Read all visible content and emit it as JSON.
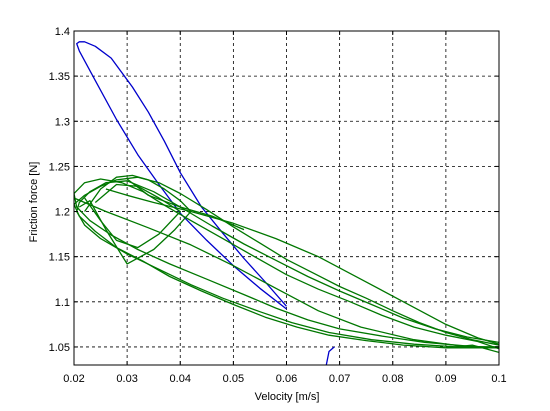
{
  "chart_data": {
    "type": "line",
    "title": "",
    "xlabel": "Velocity [m/s]",
    "ylabel": "Friction force [N]",
    "xlim": [
      0.02,
      0.1
    ],
    "ylim": [
      1.03,
      1.4
    ],
    "xticks": [
      0.02,
      0.03,
      0.04,
      0.05,
      0.06,
      0.07,
      0.08,
      0.09,
      0.1
    ],
    "xtick_labels": [
      "0.02",
      "0.03",
      "0.04",
      "0.05",
      "0.06",
      "0.07",
      "0.08",
      "0.09",
      "0.1"
    ],
    "yticks": [
      1.05,
      1.1,
      1.15,
      1.2,
      1.25,
      1.3,
      1.35,
      1.4
    ],
    "ytick_labels": [
      "1.05",
      "1.1",
      "1.15",
      "1.2",
      "1.25",
      "1.3",
      "1.35",
      "1.4"
    ],
    "grid": true,
    "legend": "none",
    "series": [
      {
        "color": "#0000cc",
        "segments": [
          [
            [
              0.06,
              1.092
            ],
            [
              0.055,
              1.115
            ],
            [
              0.05,
              1.14
            ],
            [
              0.045,
              1.168
            ],
            [
              0.04,
              1.198
            ],
            [
              0.036,
              1.23
            ],
            [
              0.032,
              1.263
            ],
            [
              0.028,
              1.302
            ],
            [
              0.024,
              1.345
            ],
            [
              0.021,
              1.378
            ],
            [
              0.0205,
              1.386
            ],
            [
              0.021,
              1.388
            ],
            [
              0.022,
              1.388
            ],
            [
              0.024,
              1.383
            ],
            [
              0.027,
              1.37
            ],
            [
              0.031,
              1.338
            ],
            [
              0.034,
              1.31
            ],
            [
              0.037,
              1.278
            ],
            [
              0.04,
              1.243
            ],
            [
              0.044,
              1.205
            ],
            [
              0.048,
              1.176
            ],
            [
              0.052,
              1.148
            ],
            [
              0.056,
              1.122
            ],
            [
              0.06,
              1.095
            ]
          ],
          [
            [
              0.0675,
              1.03
            ],
            [
              0.068,
              1.045
            ],
            [
              0.069,
              1.05
            ]
          ]
        ]
      },
      {
        "color": "#007700",
        "segments": [
          [
            [
              0.1,
              1.052
            ],
            [
              0.095,
              1.058
            ],
            [
              0.09,
              1.066
            ],
            [
              0.085,
              1.077
            ],
            [
              0.08,
              1.09
            ],
            [
              0.075,
              1.104
            ],
            [
              0.07,
              1.117
            ],
            [
              0.065,
              1.132
            ],
            [
              0.06,
              1.147
            ],
            [
              0.055,
              1.165
            ],
            [
              0.05,
              1.183
            ],
            [
              0.045,
              1.202
            ],
            [
              0.04,
              1.22
            ],
            [
              0.036,
              1.232
            ],
            [
              0.032,
              1.238
            ],
            [
              0.028,
              1.235
            ],
            [
              0.025,
              1.228
            ],
            [
              0.022,
              1.218
            ],
            [
              0.02,
              1.208
            ],
            [
              0.021,
              1.195
            ],
            [
              0.024,
              1.178
            ],
            [
              0.028,
              1.16
            ],
            [
              0.033,
              1.145
            ],
            [
              0.038,
              1.128
            ],
            [
              0.044,
              1.112
            ],
            [
              0.05,
              1.097
            ],
            [
              0.056,
              1.083
            ],
            [
              0.062,
              1.072
            ],
            [
              0.068,
              1.063
            ],
            [
              0.075,
              1.057
            ],
            [
              0.082,
              1.052
            ],
            [
              0.09,
              1.049
            ],
            [
              0.1,
              1.049
            ]
          ],
          [
            [
              0.1,
              1.055
            ],
            [
              0.094,
              1.061
            ],
            [
              0.088,
              1.07
            ],
            [
              0.082,
              1.082
            ],
            [
              0.076,
              1.097
            ],
            [
              0.07,
              1.112
            ],
            [
              0.064,
              1.128
            ],
            [
              0.058,
              1.146
            ],
            [
              0.052,
              1.164
            ],
            [
              0.046,
              1.184
            ],
            [
              0.04,
              1.205
            ],
            [
              0.035,
              1.222
            ],
            [
              0.03,
              1.234
            ],
            [
              0.026,
              1.232
            ],
            [
              0.023,
              1.222
            ],
            [
              0.021,
              1.21
            ],
            [
              0.0205,
              1.2
            ],
            [
              0.022,
              1.185
            ],
            [
              0.025,
              1.17
            ],
            [
              0.03,
              1.153
            ],
            [
              0.036,
              1.136
            ],
            [
              0.042,
              1.119
            ],
            [
              0.048,
              1.104
            ],
            [
              0.055,
              1.089
            ],
            [
              0.061,
              1.077
            ],
            [
              0.068,
              1.066
            ],
            [
              0.076,
              1.058
            ],
            [
              0.084,
              1.053
            ],
            [
              0.092,
              1.05
            ],
            [
              0.1,
              1.05
            ]
          ],
          [
            [
              0.1,
              1.048
            ],
            [
              0.096,
              1.056
            ],
            [
              0.09,
              1.063
            ],
            [
              0.084,
              1.072
            ],
            [
              0.078,
              1.085
            ],
            [
              0.072,
              1.1
            ],
            [
              0.066,
              1.114
            ],
            [
              0.06,
              1.13
            ],
            [
              0.054,
              1.15
            ],
            [
              0.048,
              1.17
            ],
            [
              0.042,
              1.19
            ],
            [
              0.037,
              1.207
            ],
            [
              0.033,
              1.222
            ],
            [
              0.029,
              1.232
            ],
            [
              0.025,
              1.236
            ],
            [
              0.022,
              1.232
            ],
            [
              0.02,
              1.22
            ],
            [
              0.0205,
              1.205
            ],
            [
              0.023,
              1.19
            ],
            [
              0.027,
              1.174
            ],
            [
              0.032,
              1.158
            ],
            [
              0.038,
              1.142
            ],
            [
              0.045,
              1.125
            ],
            [
              0.052,
              1.108
            ],
            [
              0.058,
              1.093
            ],
            [
              0.064,
              1.08
            ],
            [
              0.07,
              1.07
            ],
            [
              0.078,
              1.062
            ],
            [
              0.086,
              1.055
            ],
            [
              0.094,
              1.051
            ],
            [
              0.1,
              1.049
            ]
          ],
          [
            [
              0.022,
              1.2
            ],
            [
              0.025,
              1.225
            ],
            [
              0.028,
              1.238
            ],
            [
              0.031,
              1.24
            ],
            [
              0.034,
              1.235
            ],
            [
              0.037,
              1.225
            ],
            [
              0.04,
              1.212
            ],
            [
              0.042,
              1.2
            ],
            [
              0.039,
              1.18
            ],
            [
              0.035,
              1.158
            ],
            [
              0.03,
              1.142
            ],
            [
              0.026,
              1.18
            ],
            [
              0.023,
              1.212
            ],
            [
              0.021,
              1.205
            ]
          ],
          [
            [
              0.024,
              1.21
            ],
            [
              0.028,
              1.23
            ],
            [
              0.032,
              1.228
            ],
            [
              0.036,
              1.215
            ],
            [
              0.04,
              1.2
            ],
            [
              0.036,
              1.175
            ],
            [
              0.032,
              1.16
            ],
            [
              0.028,
              1.168
            ],
            [
              0.025,
              1.19
            ],
            [
              0.022,
              1.215
            ]
          ],
          [
            [
              0.03,
              1.236
            ],
            [
              0.034,
              1.218
            ],
            [
              0.04,
              1.205
            ],
            [
              0.046,
              1.195
            ],
            [
              0.052,
              1.18
            ]
          ],
          [
            [
              0.026,
              1.225
            ],
            [
              0.03,
              1.218
            ],
            [
              0.035,
              1.21
            ],
            [
              0.042,
              1.2
            ],
            [
              0.05,
              1.187
            ],
            [
              0.058,
              1.17
            ],
            [
              0.066,
              1.15
            ],
            [
              0.074,
              1.125
            ],
            [
              0.082,
              1.1
            ],
            [
              0.09,
              1.075
            ],
            [
              0.096,
              1.06
            ],
            [
              0.1,
              1.053
            ]
          ],
          [
            [
              0.02,
              1.215
            ],
            [
              0.026,
              1.2
            ],
            [
              0.034,
              1.182
            ],
            [
              0.042,
              1.163
            ],
            [
              0.05,
              1.14
            ],
            [
              0.058,
              1.115
            ],
            [
              0.066,
              1.09
            ],
            [
              0.074,
              1.072
            ],
            [
              0.084,
              1.058
            ],
            [
              0.094,
              1.05
            ],
            [
              0.1,
              1.05
            ]
          ],
          [
            [
              0.1,
              1.044
            ],
            [
              0.095,
              1.052
            ],
            [
              0.09,
              1.049
            ]
          ]
        ]
      }
    ]
  }
}
